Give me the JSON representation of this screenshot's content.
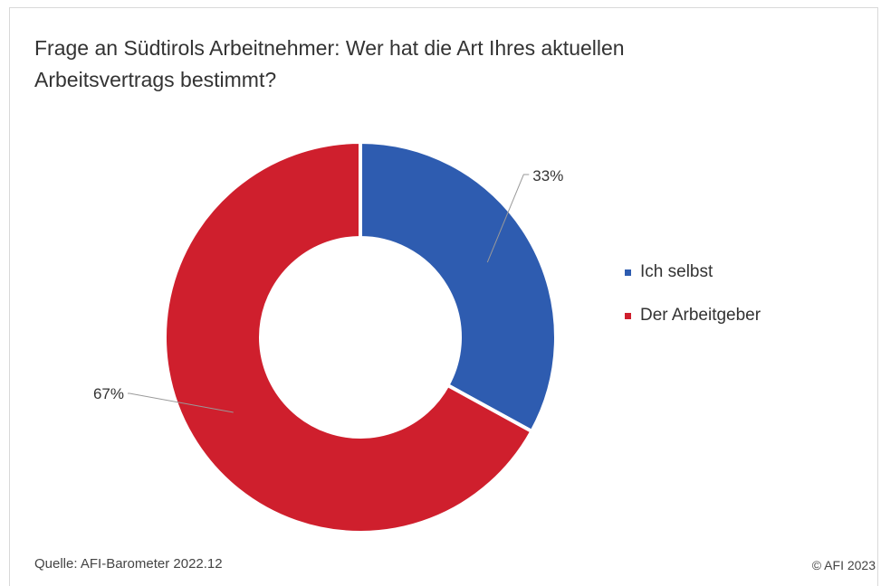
{
  "chart_data": {
    "type": "pie",
    "title": "Frage an Südtirols Arbeitnehmer: Wer hat die Art Ihres aktuellen Arbeitsvertrags bestimmt?",
    "categories": [
      "Ich selbst",
      "Der Arbeitgeber"
    ],
    "values": [
      33,
      67
    ],
    "value_labels": [
      "33%",
      "67%"
    ],
    "colors": [
      "#2e5cb0",
      "#cf1f2d"
    ],
    "donut": true,
    "legend_position": "right"
  },
  "source": "Quelle: AFI-Barometer 2022.12",
  "copyright": "© AFI 2023"
}
